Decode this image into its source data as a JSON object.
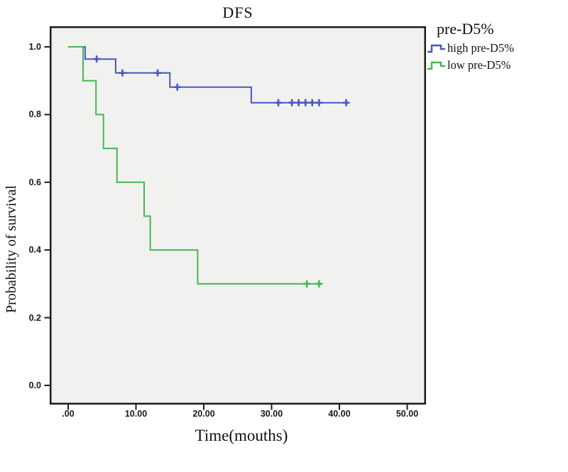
{
  "chart_data": {
    "type": "line",
    "subtype": "kaplan-meier-step",
    "title": "DFS",
    "xlabel": "Time(mouths)",
    "ylabel": "Probability of survival",
    "xlim": [
      0,
      50
    ],
    "ylim": [
      0.0,
      1.0
    ],
    "grid": false,
    "plot_background": "#f1f1ef",
    "colors": {
      "frame": "#1b1b1b",
      "tick_text": "#17171f",
      "high": "#4558c0",
      "low": "#45b755"
    },
    "xticks": [
      {
        "value": 0,
        "label": ".00"
      },
      {
        "value": 10,
        "label": "10.00"
      },
      {
        "value": 20,
        "label": "20.00"
      },
      {
        "value": 30,
        "label": "30.00"
      },
      {
        "value": 40,
        "label": "40.00"
      },
      {
        "value": 50,
        "label": "50.00"
      }
    ],
    "yticks": [
      {
        "value": 0.0,
        "label": "0.0"
      },
      {
        "value": 0.2,
        "label": "0.2"
      },
      {
        "value": 0.4,
        "label": "0.4"
      },
      {
        "value": 0.6,
        "label": "0.6"
      },
      {
        "value": 0.8,
        "label": "0.8"
      },
      {
        "value": 1.0,
        "label": "1.0"
      }
    ],
    "legend": {
      "title": "pre-D5%",
      "position": "right-top"
    },
    "series": [
      {
        "name": "high pre-D5%",
        "color": "#4558c0",
        "steps": [
          [
            0,
            1.0
          ],
          [
            2.5,
            1.0
          ],
          [
            2.5,
            0.964
          ],
          [
            7,
            0.964
          ],
          [
            7,
            0.923
          ],
          [
            15,
            0.923
          ],
          [
            15,
            0.881
          ],
          [
            27,
            0.881
          ],
          [
            27,
            0.835
          ],
          [
            41.5,
            0.835
          ]
        ],
        "censors": [
          [
            4.2,
            0.964
          ],
          [
            8,
            0.923
          ],
          [
            13.2,
            0.923
          ],
          [
            16.1,
            0.881
          ],
          [
            31,
            0.835
          ],
          [
            33,
            0.835
          ],
          [
            34,
            0.835
          ],
          [
            35,
            0.835
          ],
          [
            36,
            0.835
          ],
          [
            37,
            0.835
          ],
          [
            41,
            0.835
          ]
        ]
      },
      {
        "name": "low pre-D5%",
        "color": "#45b755",
        "steps": [
          [
            0,
            1.0
          ],
          [
            2.2,
            1.0
          ],
          [
            2.2,
            0.9
          ],
          [
            4.1,
            0.9
          ],
          [
            4.1,
            0.8
          ],
          [
            5.2,
            0.8
          ],
          [
            5.2,
            0.7
          ],
          [
            7.2,
            0.7
          ],
          [
            7.2,
            0.6
          ],
          [
            11.2,
            0.6
          ],
          [
            11.2,
            0.5
          ],
          [
            12.1,
            0.5
          ],
          [
            12.1,
            0.4
          ],
          [
            19.1,
            0.4
          ],
          [
            19.1,
            0.3
          ],
          [
            37.5,
            0.3
          ]
        ],
        "censors": [
          [
            35.2,
            0.3
          ],
          [
            37,
            0.3
          ]
        ]
      }
    ]
  }
}
